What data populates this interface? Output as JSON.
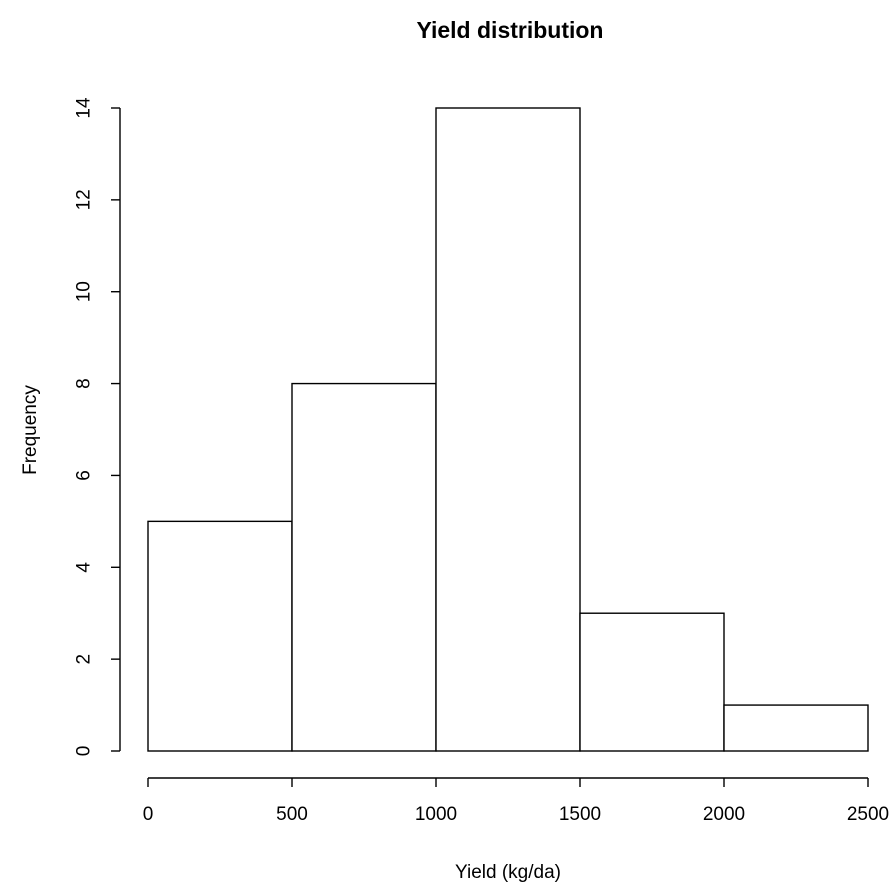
{
  "chart_data": {
    "type": "bar",
    "title": "Yield distribution",
    "xlabel": "Yield (kg/da)",
    "ylabel": "Frequency",
    "bins": [
      {
        "start": 0,
        "end": 500,
        "count": 5
      },
      {
        "start": 500,
        "end": 1000,
        "count": 8
      },
      {
        "start": 1000,
        "end": 1500,
        "count": 14
      },
      {
        "start": 1500,
        "end": 2000,
        "count": 3
      },
      {
        "start": 2000,
        "end": 2500,
        "count": 1
      }
    ],
    "xlim": [
      0,
      2500
    ],
    "ylim": [
      0,
      14
    ],
    "x_ticks": [
      0,
      500,
      1000,
      1500,
      2000,
      2500
    ],
    "y_ticks": [
      0,
      2,
      4,
      6,
      8,
      10,
      12,
      14
    ],
    "grid": false,
    "legend": "none"
  }
}
